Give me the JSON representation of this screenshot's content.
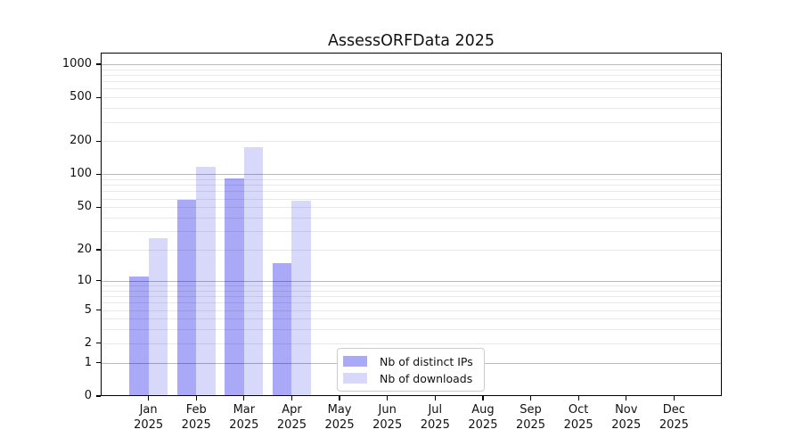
{
  "chart_data": {
    "type": "bar",
    "title": "AssessORFData 2025",
    "categories": [
      "Jan",
      "Feb",
      "Mar",
      "Apr",
      "May",
      "Jun",
      "Jul",
      "Aug",
      "Sep",
      "Oct",
      "Nov",
      "Dec"
    ],
    "x_year": "2025",
    "series": [
      {
        "name": "Nb of distinct IPs",
        "color": "#a9a9f7",
        "values": [
          11,
          58,
          91,
          15,
          0,
          0,
          0,
          0,
          0,
          0,
          0,
          0
        ]
      },
      {
        "name": "Nb of downloads",
        "color": "#d8d8fa",
        "values": [
          26,
          118,
          178,
          57,
          0,
          0,
          0,
          0,
          0,
          0,
          0,
          0
        ]
      }
    ],
    "yscale": "log1p",
    "yticks": [
      0,
      1,
      2,
      5,
      10,
      20,
      50,
      100,
      200,
      500,
      1000
    ],
    "ylim": [
      0,
      1270
    ],
    "grid": true,
    "legend_position": "bottom-center"
  }
}
